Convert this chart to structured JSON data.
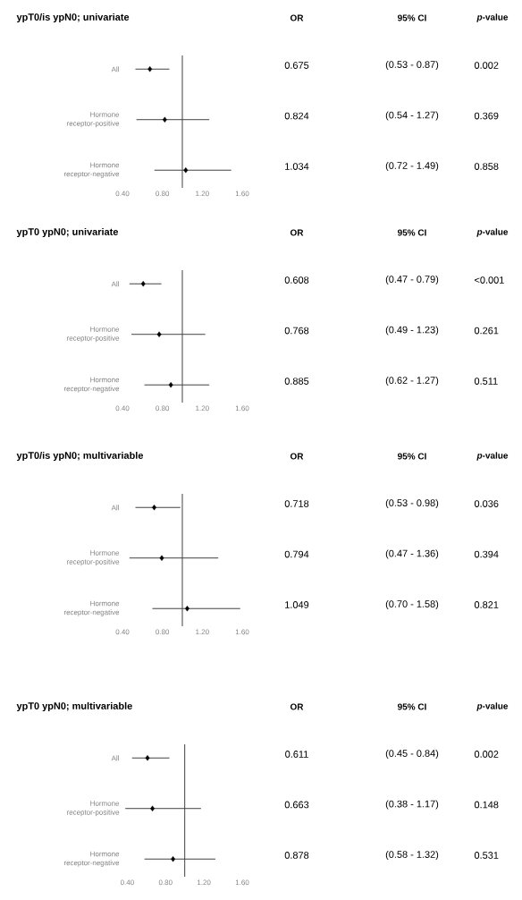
{
  "chart_data": [
    {
      "type": "scatter",
      "orientation": "horizontal",
      "title": "ypT0/is ypN0; univariate",
      "categories": [
        "All",
        "Hormone receptor-positive",
        "Hormone receptor-negative"
      ],
      "values": [
        0.675,
        0.824,
        1.034
      ],
      "errors": [
        [
          0.53,
          0.87
        ],
        [
          0.54,
          1.27
        ],
        [
          0.72,
          1.49
        ]
      ],
      "color": "#000000",
      "marker": "diamond",
      "value_labels": [
        "0.675",
        "0.824",
        "1.034"
      ],
      "xlim": [
        0.4,
        1.6
      ],
      "xticks": [
        {
          "value": 0.4,
          "label": "0.40"
        },
        {
          "value": 0.8,
          "label": "0.80"
        },
        {
          "value": 1.2,
          "label": "1.20"
        },
        {
          "value": 1.6,
          "label": "1.60"
        }
      ],
      "ref_lines": [
        {
          "axis": "x",
          "value": 1,
          "color": "#404040"
        }
      ],
      "annotations": [
        "OR",
        "95% CI",
        "*p*-value",
        "(0.53 - 0.87)",
        "0.002",
        "(0.54 - 1.27)",
        "0.369",
        "(0.72 - 1.49)",
        "0.858"
      ]
    },
    {
      "type": "scatter",
      "orientation": "horizontal",
      "title": "ypT0 ypN0; univariate",
      "categories": [
        "All",
        "Hormone receptor-positive",
        "Hormone receptor-negative"
      ],
      "values": [
        0.608,
        0.768,
        0.885
      ],
      "errors": [
        [
          0.47,
          0.79
        ],
        [
          0.49,
          1.23
        ],
        [
          0.62,
          1.27
        ]
      ],
      "color": "#000000",
      "marker": "diamond",
      "value_labels": [
        "0.608",
        "0.768",
        "0.885"
      ],
      "xlim": [
        0.4,
        1.6
      ],
      "xticks": [
        {
          "value": 0.4,
          "label": "0.40"
        },
        {
          "value": 0.8,
          "label": "0.80"
        },
        {
          "value": 1.2,
          "label": "1.20"
        },
        {
          "value": 1.6,
          "label": "1.60"
        }
      ],
      "ref_lines": [
        {
          "axis": "x",
          "value": 1,
          "color": "#404040"
        }
      ],
      "annotations": [
        "OR",
        "95% CI",
        "*p*-value",
        "(0.47 - 0.79)",
        "<0.001",
        "(0.49 - 1.23)",
        "0.261",
        "(0.62 - 1.27)",
        "0.511"
      ]
    },
    {
      "type": "scatter",
      "orientation": "horizontal",
      "title": "ypT0/is ypN0; multivariable",
      "categories": [
        "All",
        "Hormone receptor-positive",
        "Hormone receptor-negative"
      ],
      "values": [
        0.718,
        0.794,
        1.049
      ],
      "errors": [
        [
          0.53,
          0.98
        ],
        [
          0.47,
          1.36
        ],
        [
          0.7,
          1.58
        ]
      ],
      "color": "#000000",
      "marker": "diamond",
      "value_labels": [
        "0.718",
        "0.794",
        "1.049"
      ],
      "xlim": [
        0.4,
        1.6
      ],
      "xticks": [
        {
          "value": 0.4,
          "label": "0.40"
        },
        {
          "value": 0.8,
          "label": "0.80"
        },
        {
          "value": 1.2,
          "label": "1.20"
        },
        {
          "value": 1.6,
          "label": "1.60"
        }
      ],
      "ref_lines": [
        {
          "axis": "x",
          "value": 1,
          "color": "#404040"
        }
      ],
      "annotations": [
        "OR",
        "95% CI",
        "*p*-value",
        "(0.53 - 0.98)",
        "0.036",
        "(0.47 - 1.36)",
        "0.394",
        "(0.70 - 1.58)",
        "0.821"
      ]
    },
    {
      "type": "scatter",
      "orientation": "horizontal",
      "title": "ypT0 ypN0; multivariable",
      "categories": [
        "All",
        "Hormone receptor-positive",
        "Hormone receptor-negative"
      ],
      "values": [
        0.611,
        0.663,
        0.878
      ],
      "errors": [
        [
          0.45,
          0.84
        ],
        [
          0.38,
          1.17
        ],
        [
          0.58,
          1.32
        ]
      ],
      "color": "#000000",
      "marker": "diamond",
      "value_labels": [
        "0.611",
        "0.663",
        "0.878"
      ],
      "xlim": [
        0.35,
        1.6
      ],
      "xticks": [
        {
          "value": 0.4,
          "label": "0.40"
        },
        {
          "value": 0.8,
          "label": "0.80"
        },
        {
          "value": 1.2,
          "label": "1.20"
        },
        {
          "value": 1.6,
          "label": "1.60"
        }
      ],
      "ref_lines": [
        {
          "axis": "x",
          "value": 1,
          "color": "#404040"
        }
      ],
      "annotations": [
        "OR",
        "95% CI",
        "*p*-value",
        "(0.45 - 0.84)",
        "0.002",
        "(0.38 - 1.17)",
        "0.148",
        "(0.58 - 1.32)",
        "0.531"
      ]
    }
  ]
}
